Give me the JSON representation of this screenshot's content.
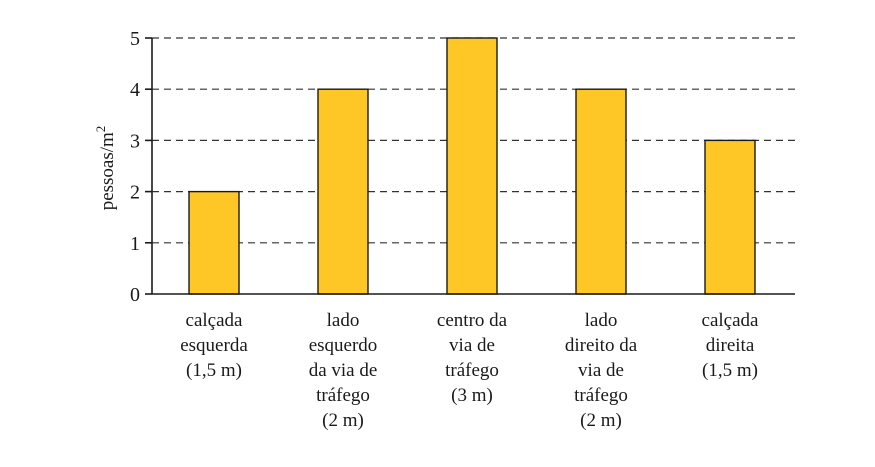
{
  "chart_data": {
    "type": "bar",
    "categories": [
      [
        "calçada",
        "esquerda",
        "(1,5 m)"
      ],
      [
        "lado",
        "esquerdo",
        "da via de",
        "tráfego",
        "(2 m)"
      ],
      [
        "centro da",
        "via de",
        "tráfego",
        "(3 m)"
      ],
      [
        "lado",
        "direito da",
        "via de",
        "tráfego",
        "(2 m)"
      ],
      [
        "calçada",
        "direita",
        "(1,5 m)"
      ]
    ],
    "values": [
      2,
      4,
      5,
      4,
      3
    ],
    "ylabel_main": "pessoas/m",
    "ylabel_sup": "2",
    "ylim": [
      0,
      5
    ],
    "yticks": [
      "0",
      "1",
      "2",
      "3",
      "4",
      "5"
    ],
    "grid": true,
    "bar_color": "#FFC726"
  }
}
